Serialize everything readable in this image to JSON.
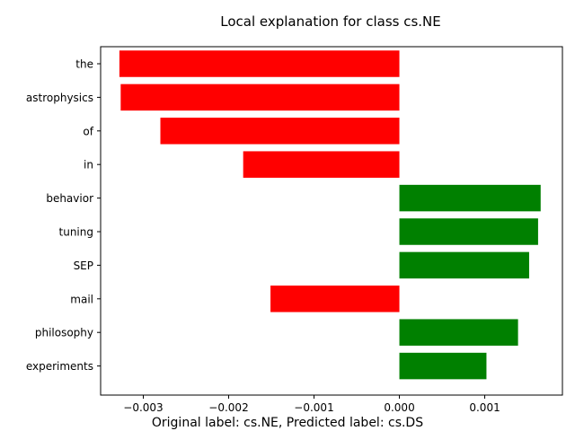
{
  "chart_data": {
    "type": "bar",
    "orientation": "horizontal",
    "title": "Local explanation for class cs.NE",
    "xlabel": "",
    "ylabel": "",
    "categories": [
      "the",
      "astrophysics",
      "of",
      "in",
      "behavior",
      "tuning",
      "SEP",
      "mail",
      "philosophy",
      "experiments"
    ],
    "values": [
      -0.00328,
      -0.003265,
      -0.0028,
      -0.00183,
      0.001655,
      0.001625,
      0.00152,
      -0.00151,
      0.00139,
      0.00102
    ],
    "xlim": [
      -0.0035,
      0.00191
    ],
    "xticks": [
      -0.003,
      -0.002,
      -0.001,
      0.0,
      0.001
    ],
    "xtick_labels": [
      "−0.003",
      "−0.002",
      "−0.001",
      "0.000",
      "0.001"
    ],
    "colors": {
      "positive": "#008000",
      "negative": "#ff0000"
    },
    "grid": false,
    "legend": null
  },
  "caption": "Original label: cs.NE, Predicted label: cs.DS"
}
